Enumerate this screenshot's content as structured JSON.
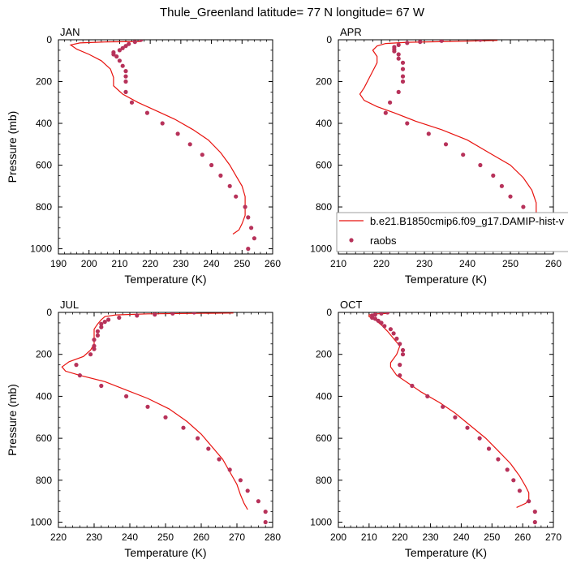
{
  "figure": {
    "title": "Thule_Greenland  latitude= 77 N longitude= 67 W",
    "xlabel": "Temperature (K)",
    "ylabel": "Pressure (mb)",
    "colors": {
      "model": "#e8130f",
      "obs": "#b7325a"
    }
  },
  "legend": {
    "model_label": "b.e21.B1850cmip6.f09_g17.DAMIP-hist-v",
    "obs_label": "raobs"
  },
  "chart_data": [
    {
      "type": "line",
      "title": "JAN",
      "xlabel": "Temperature (K)",
      "ylabel": "Pressure (mb)",
      "xlim": [
        190,
        260
      ],
      "ylim": [
        0,
        1025
      ],
      "y_inverted": true,
      "xticks": [
        190,
        200,
        210,
        220,
        230,
        240,
        250,
        260
      ],
      "yticks": [
        0,
        200,
        400,
        600,
        800,
        1000
      ],
      "series": [
        {
          "kind": "line",
          "points": [
            [
              217,
              8
            ],
            [
              206,
              10
            ],
            [
              197,
              15
            ],
            [
              194,
              25
            ],
            [
              196,
              45
            ],
            [
              200,
              70
            ],
            [
              204,
              100
            ],
            [
              207,
              140
            ],
            [
              208,
              180
            ],
            [
              208,
              220
            ],
            [
              211,
              260
            ],
            [
              216,
              300
            ],
            [
              222,
              340
            ],
            [
              228,
              380
            ],
            [
              234,
              430
            ],
            [
              239,
              480
            ],
            [
              243,
              540
            ],
            [
              246,
              600
            ],
            [
              248,
              650
            ],
            [
              250,
              700
            ],
            [
              251,
              750
            ],
            [
              251,
              800
            ],
            [
              251,
              840
            ],
            [
              250,
              880
            ],
            [
              249,
              910
            ],
            [
              247,
              930
            ]
          ]
        },
        {
          "kind": "points",
          "points": [
            [
              217,
              0
            ],
            [
              215,
              10
            ],
            [
              213,
              20
            ],
            [
              212,
              30
            ],
            [
              211,
              40
            ],
            [
              210,
              50
            ],
            [
              208,
              60
            ],
            [
              208,
              70
            ],
            [
              209,
              80
            ],
            [
              210,
              100
            ],
            [
              211,
              125
            ],
            [
              212,
              150
            ],
            [
              212,
              175
            ],
            [
              212,
              200
            ],
            [
              212,
              250
            ],
            [
              214,
              300
            ],
            [
              219,
              350
            ],
            [
              224,
              400
            ],
            [
              229,
              450
            ],
            [
              233,
              500
            ],
            [
              237,
              550
            ],
            [
              240,
              600
            ],
            [
              243,
              650
            ],
            [
              246,
              700
            ],
            [
              248,
              750
            ],
            [
              251,
              800
            ],
            [
              252,
              850
            ],
            [
              253,
              900
            ],
            [
              254,
              950
            ],
            [
              252,
              1000
            ]
          ]
        }
      ]
    },
    {
      "type": "line",
      "title": "APR",
      "xlabel": "Temperature (K)",
      "ylabel": "Pressure (mb)",
      "xlim": [
        210,
        260
      ],
      "ylim": [
        0,
        1025
      ],
      "y_inverted": true,
      "xticks": [
        210,
        220,
        230,
        240,
        250,
        260
      ],
      "yticks": [
        0,
        200,
        400,
        600,
        800,
        1000
      ],
      "series": [
        {
          "kind": "line",
          "points": [
            [
              247,
              3
            ],
            [
              236,
              8
            ],
            [
              226,
              12
            ],
            [
              221,
              18
            ],
            [
              219,
              30
            ],
            [
              218,
              50
            ],
            [
              219,
              80
            ],
            [
              219,
              110
            ],
            [
              218,
              150
            ],
            [
              217,
              190
            ],
            [
              216,
              230
            ],
            [
              215,
              260
            ],
            [
              216,
              290
            ],
            [
              219,
              320
            ],
            [
              223,
              350
            ],
            [
              228,
              390
            ],
            [
              234,
              430
            ],
            [
              240,
              480
            ],
            [
              245,
              540
            ],
            [
              250,
              600
            ],
            [
              253,
              660
            ],
            [
              255,
              720
            ],
            [
              256,
              780
            ],
            [
              256,
              830
            ],
            [
              256,
              880
            ],
            [
              256,
              920
            ],
            [
              255,
              940
            ]
          ]
        },
        {
          "kind": "points",
          "points": [
            [
              243,
              0
            ],
            [
              234,
              5
            ],
            [
              229,
              10
            ],
            [
              226,
              15
            ],
            [
              224,
              25
            ],
            [
              223,
              35
            ],
            [
              223,
              45
            ],
            [
              223,
              55
            ],
            [
              224,
              70
            ],
            [
              224,
              90
            ],
            [
              225,
              110
            ],
            [
              225,
              140
            ],
            [
              225,
              175
            ],
            [
              225,
              200
            ],
            [
              224,
              250
            ],
            [
              222,
              300
            ],
            [
              221,
              350
            ],
            [
              226,
              400
            ],
            [
              231,
              450
            ],
            [
              235,
              500
            ],
            [
              239,
              550
            ],
            [
              243,
              600
            ],
            [
              246,
              650
            ],
            [
              248,
              700
            ],
            [
              250,
              750
            ],
            [
              253,
              800
            ],
            [
              255,
              850
            ],
            [
              257,
              900
            ],
            [
              257,
              950
            ],
            [
              257,
              1000
            ]
          ]
        }
      ]
    },
    {
      "type": "line",
      "title": "JUL",
      "xlabel": "Temperature (K)",
      "ylabel": "Pressure (mb)",
      "xlim": [
        220,
        280
      ],
      "ylim": [
        0,
        1025
      ],
      "y_inverted": true,
      "xticks": [
        220,
        230,
        240,
        250,
        260,
        270,
        280
      ],
      "yticks": [
        0,
        200,
        400,
        600,
        800,
        1000
      ],
      "series": [
        {
          "kind": "line",
          "points": [
            [
              269,
              3
            ],
            [
              256,
              5
            ],
            [
              245,
              7
            ],
            [
              236,
              12
            ],
            [
              233,
              20
            ],
            [
              232,
              35
            ],
            [
              231,
              55
            ],
            [
              230,
              80
            ],
            [
              230,
              110
            ],
            [
              230,
              150
            ],
            [
              229,
              180
            ],
            [
              227,
              210
            ],
            [
              223,
              235
            ],
            [
              221,
              260
            ],
            [
              222,
              280
            ],
            [
              226,
              300
            ],
            [
              233,
              330
            ],
            [
              239,
              370
            ],
            [
              245,
              410
            ],
            [
              251,
              460
            ],
            [
              256,
              520
            ],
            [
              260,
              580
            ],
            [
              263,
              640
            ],
            [
              266,
              700
            ],
            [
              268,
              760
            ],
            [
              270,
              820
            ],
            [
              271,
              870
            ],
            [
              272,
              910
            ],
            [
              273,
              940
            ]
          ]
        },
        {
          "kind": "points",
          "points": [
            [
              258,
              0
            ],
            [
              252,
              5
            ],
            [
              247,
              10
            ],
            [
              242,
              15
            ],
            [
              237,
              25
            ],
            [
              234,
              35
            ],
            [
              233,
              45
            ],
            [
              232,
              55
            ],
            [
              232,
              70
            ],
            [
              231,
              90
            ],
            [
              231,
              110
            ],
            [
              230,
              130
            ],
            [
              230,
              160
            ],
            [
              230,
              175
            ],
            [
              229,
              200
            ],
            [
              225,
              250
            ],
            [
              226,
              300
            ],
            [
              232,
              350
            ],
            [
              239,
              400
            ],
            [
              245,
              450
            ],
            [
              250,
              500
            ],
            [
              255,
              550
            ],
            [
              259,
              600
            ],
            [
              262,
              650
            ],
            [
              265,
              700
            ],
            [
              268,
              750
            ],
            [
              271,
              800
            ],
            [
              273,
              850
            ],
            [
              276,
              900
            ],
            [
              278,
              950
            ],
            [
              278,
              1000
            ]
          ]
        }
      ]
    },
    {
      "type": "line",
      "title": "OCT",
      "xlabel": "Temperature (K)",
      "ylabel": "Pressure (mb)",
      "xlim": [
        200,
        270
      ],
      "ylim": [
        0,
        1025
      ],
      "y_inverted": true,
      "xticks": [
        200,
        210,
        220,
        230,
        240,
        250,
        260,
        270
      ],
      "yticks": [
        0,
        200,
        400,
        600,
        800,
        1000
      ],
      "series": [
        {
          "kind": "line",
          "points": [
            [
              216,
              5
            ],
            [
              212,
              7
            ],
            [
              210,
              12
            ],
            [
              210,
              20
            ],
            [
              212,
              35
            ],
            [
              214,
              60
            ],
            [
              216,
              90
            ],
            [
              218,
              125
            ],
            [
              220,
              160
            ],
            [
              219,
              200
            ],
            [
              217,
              240
            ],
            [
              217,
              260
            ],
            [
              219,
              300
            ],
            [
              223,
              340
            ],
            [
              227,
              380
            ],
            [
              233,
              430
            ],
            [
              238,
              480
            ],
            [
              243,
              540
            ],
            [
              248,
              600
            ],
            [
              252,
              660
            ],
            [
              256,
              720
            ],
            [
              259,
              780
            ],
            [
              261,
              830
            ],
            [
              262,
              860
            ],
            [
              262,
              890
            ],
            [
              261,
              910
            ],
            [
              258,
              930
            ]
          ]
        },
        {
          "kind": "points",
          "points": [
            [
              216,
              0
            ],
            [
              214,
              5
            ],
            [
              212,
              10
            ],
            [
              211,
              15
            ],
            [
              211,
              25
            ],
            [
              212,
              30
            ],
            [
              213,
              40
            ],
            [
              214,
              50
            ],
            [
              215,
              65
            ],
            [
              217,
              80
            ],
            [
              218,
              100
            ],
            [
              219,
              125
            ],
            [
              220,
              150
            ],
            [
              221,
              180
            ],
            [
              221,
              200
            ],
            [
              220,
              250
            ],
            [
              220,
              300
            ],
            [
              224,
              350
            ],
            [
              229,
              400
            ],
            [
              234,
              450
            ],
            [
              238,
              500
            ],
            [
              242,
              550
            ],
            [
              246,
              600
            ],
            [
              249,
              650
            ],
            [
              252,
              700
            ],
            [
              255,
              750
            ],
            [
              257,
              800
            ],
            [
              259,
              850
            ],
            [
              262,
              900
            ],
            [
              264,
              950
            ],
            [
              264,
              1000
            ]
          ]
        }
      ]
    }
  ]
}
